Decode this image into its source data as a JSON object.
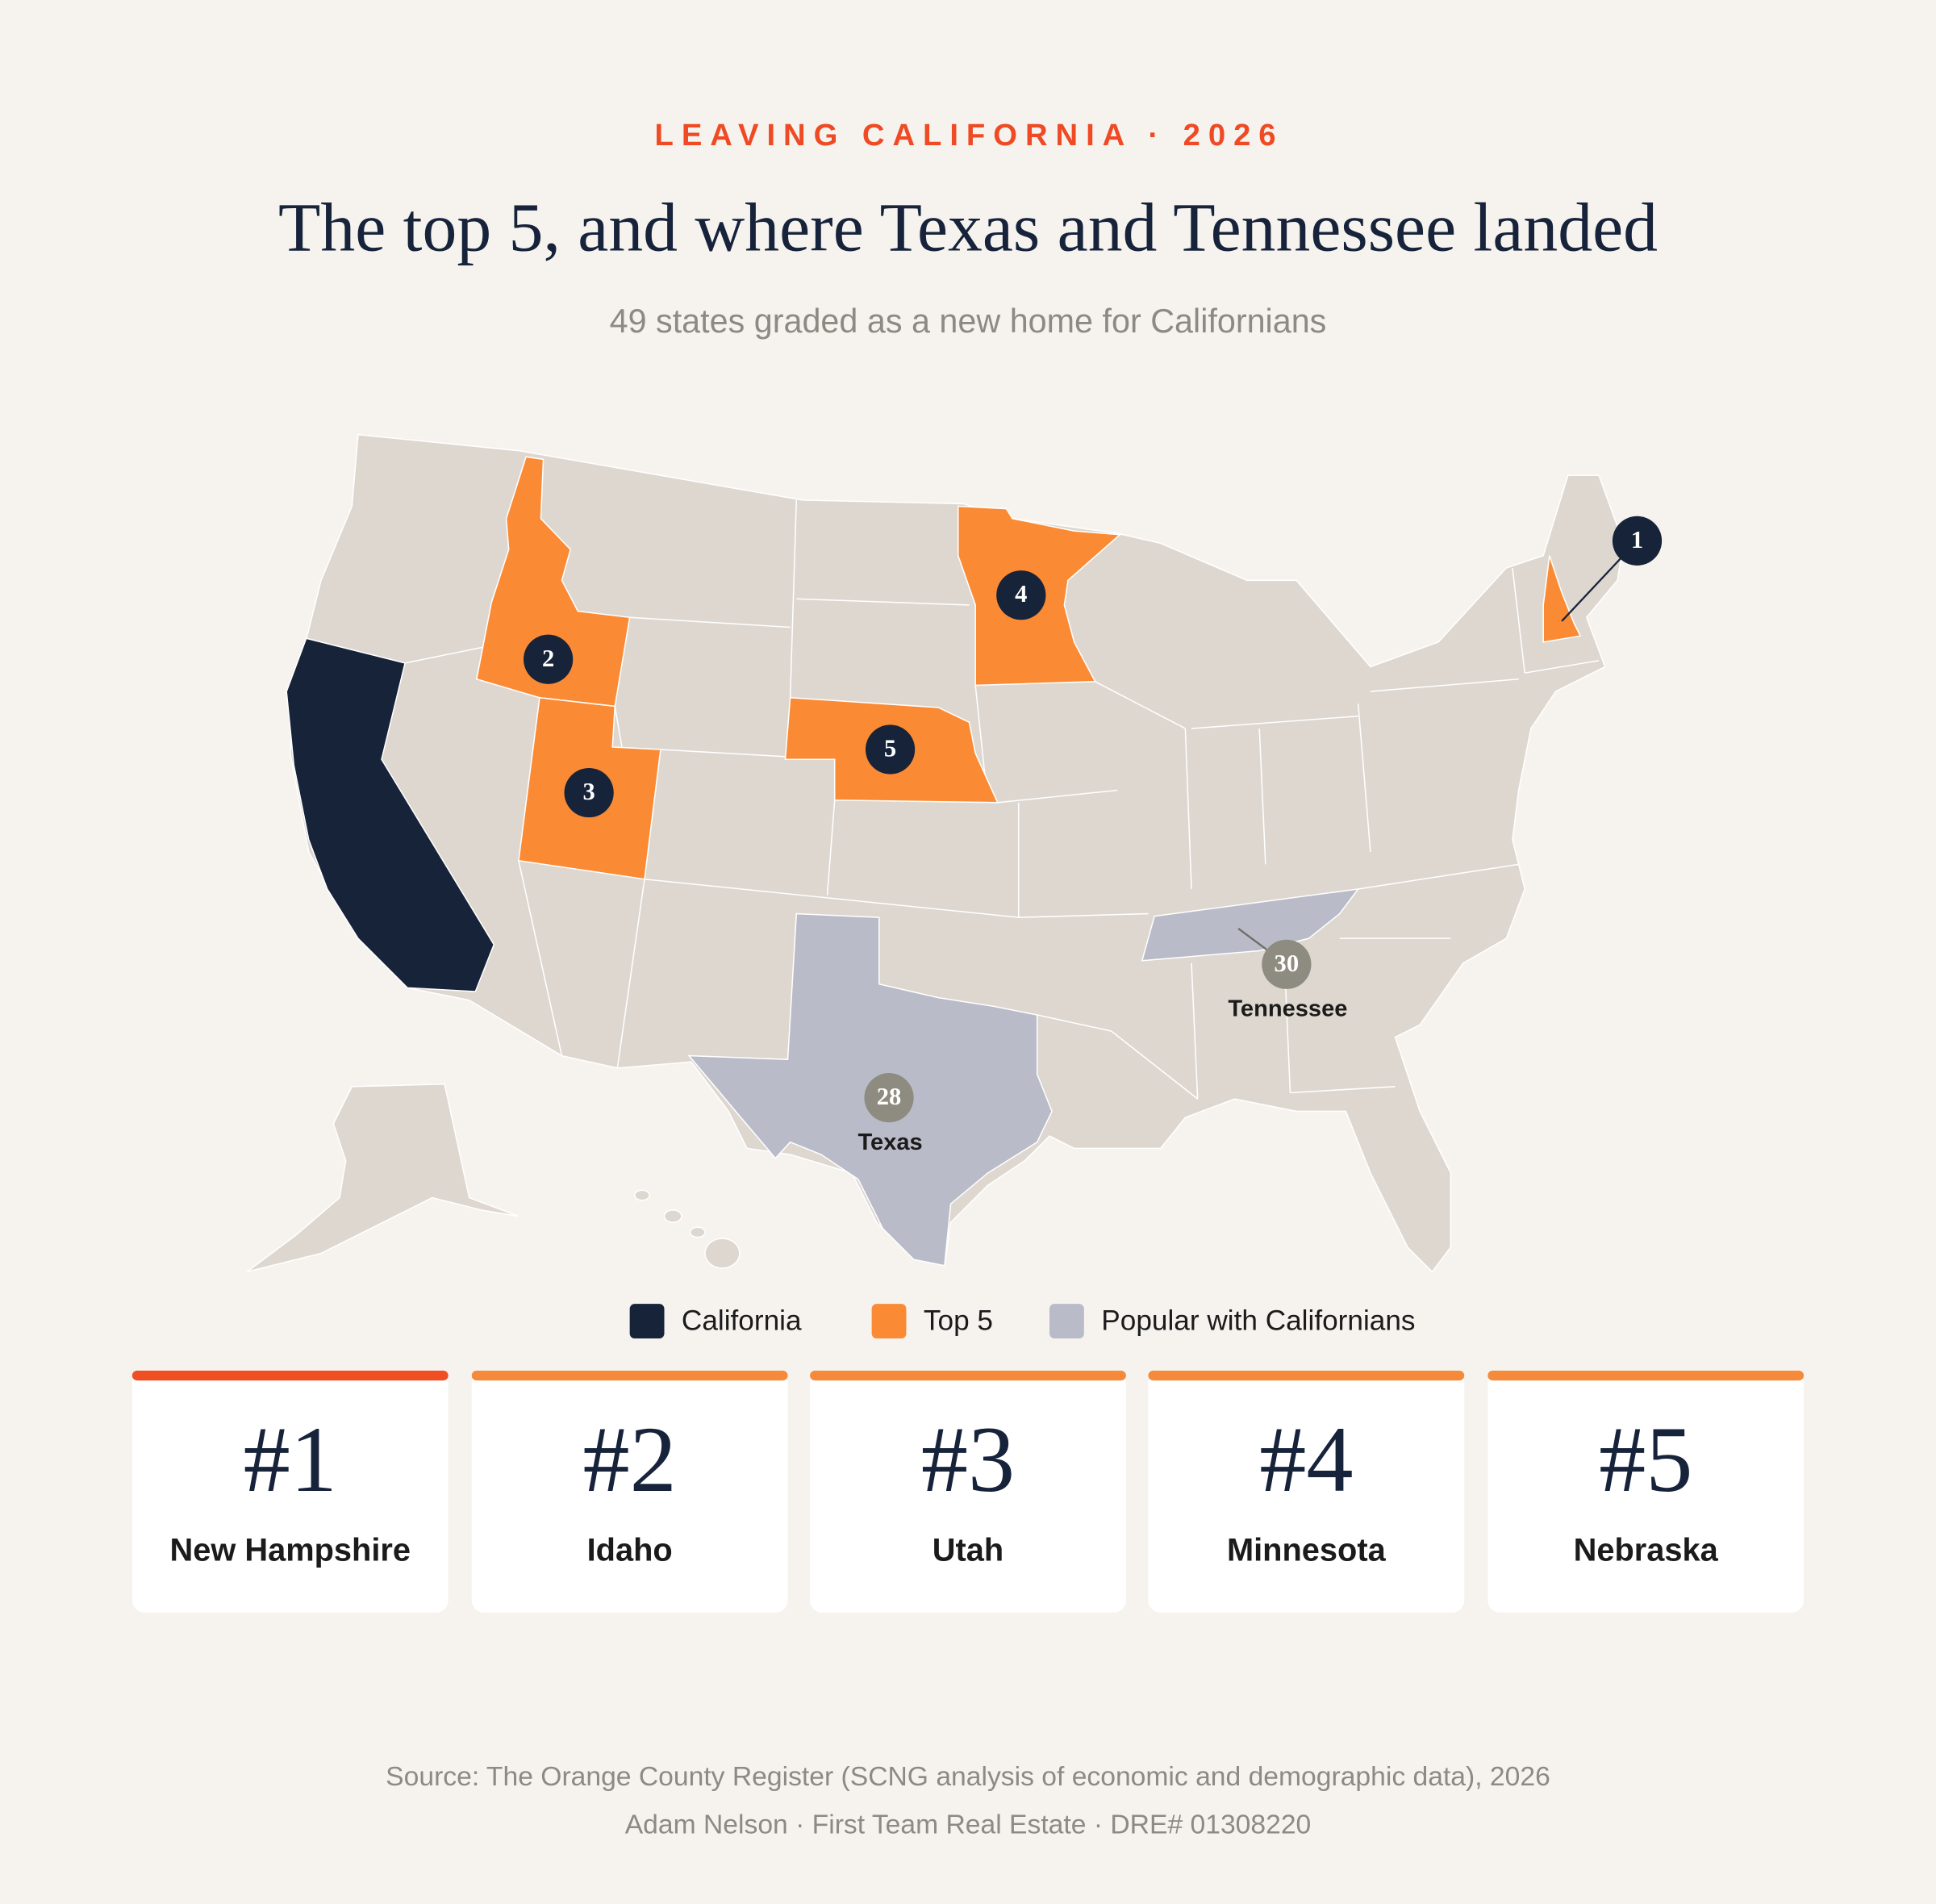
{
  "header": {
    "kicker": "LEAVING CALIFORNIA · 2026",
    "title": "The top 5, and where Texas and Tennessee landed",
    "subtitle": "49 states graded as a new home for Californians"
  },
  "map": {
    "markers": [
      {
        "rank": "1"
      },
      {
        "rank": "2"
      },
      {
        "rank": "3"
      },
      {
        "rank": "4"
      },
      {
        "rank": "5"
      }
    ],
    "callouts": [
      {
        "rank": "28",
        "label": "Texas"
      },
      {
        "rank": "30",
        "label": "Tennessee"
      }
    ]
  },
  "legend": [
    "California",
    "Top 5",
    "Popular with Californians"
  ],
  "cards": [
    {
      "rank": "#1",
      "state": "New Hampshire"
    },
    {
      "rank": "#2",
      "state": "Idaho"
    },
    {
      "rank": "#3",
      "state": "Utah"
    },
    {
      "rank": "#4",
      "state": "Minnesota"
    },
    {
      "rank": "#5",
      "state": "Nebraska"
    }
  ],
  "footer": {
    "source": "Source: The Orange County Register (SCNG analysis of economic and demographic data), 2026",
    "credit": "Adam Nelson · First Team Real Estate · DRE# 01308220"
  }
}
